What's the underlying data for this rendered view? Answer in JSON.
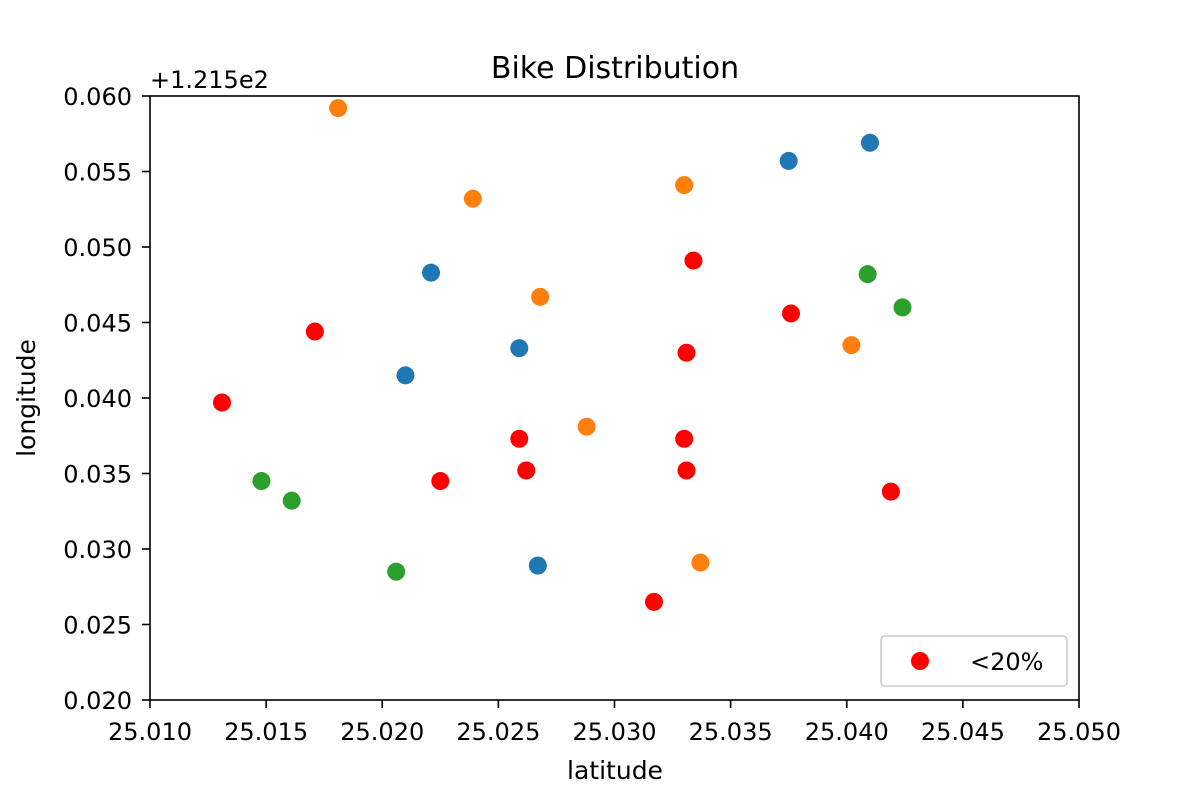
{
  "chart_data": {
    "type": "scatter",
    "title": "Bike Distribution",
    "xlabel": "latitude",
    "ylabel": "longitude",
    "y_offset_label": "+1.215e2",
    "xlim": [
      25.01,
      25.05
    ],
    "ylim": [
      0.02,
      0.06
    ],
    "x_ticks": [
      "25.010",
      "25.015",
      "25.020",
      "25.025",
      "25.030",
      "25.035",
      "25.040",
      "25.045",
      "25.050"
    ],
    "y_ticks": [
      "0.020",
      "0.025",
      "0.030",
      "0.035",
      "0.040",
      "0.045",
      "0.050",
      "0.055",
      "0.060"
    ],
    "grid": false,
    "legend": {
      "placement": "lower-right",
      "entries": [
        {
          "label": "<20%",
          "color": "#ff0000"
        }
      ]
    },
    "series": [
      {
        "color": "#1f77b4",
        "points": [
          [
            25.0375,
            0.0557
          ],
          [
            25.041,
            0.0569
          ],
          [
            25.0221,
            0.0483
          ],
          [
            25.0259,
            0.0433
          ],
          [
            25.021,
            0.0415
          ],
          [
            25.0267,
            0.0289
          ]
        ]
      },
      {
        "color": "#ff7f0e",
        "points": [
          [
            25.0181,
            0.0592
          ],
          [
            25.0239,
            0.0532
          ],
          [
            25.033,
            0.0541
          ],
          [
            25.0268,
            0.0467
          ],
          [
            25.0402,
            0.0435
          ],
          [
            25.0288,
            0.0381
          ],
          [
            25.0337,
            0.0291
          ]
        ]
      },
      {
        "color": "#2ca02c",
        "points": [
          [
            25.0409,
            0.0482
          ],
          [
            25.0424,
            0.046
          ],
          [
            25.0148,
            0.0345
          ],
          [
            25.0161,
            0.0332
          ],
          [
            25.0206,
            0.0285
          ]
        ]
      },
      {
        "name": "<20%",
        "color": "#ff0000",
        "points": [
          [
            25.0334,
            0.0491
          ],
          [
            25.0376,
            0.0456
          ],
          [
            25.0171,
            0.0444
          ],
          [
            25.0331,
            0.043
          ],
          [
            25.0131,
            0.0397
          ],
          [
            25.0259,
            0.0373
          ],
          [
            25.033,
            0.0373
          ],
          [
            25.0262,
            0.0352
          ],
          [
            25.0331,
            0.0352
          ],
          [
            25.0225,
            0.0345
          ],
          [
            25.0419,
            0.0338
          ],
          [
            25.0317,
            0.0265
          ]
        ]
      }
    ]
  }
}
